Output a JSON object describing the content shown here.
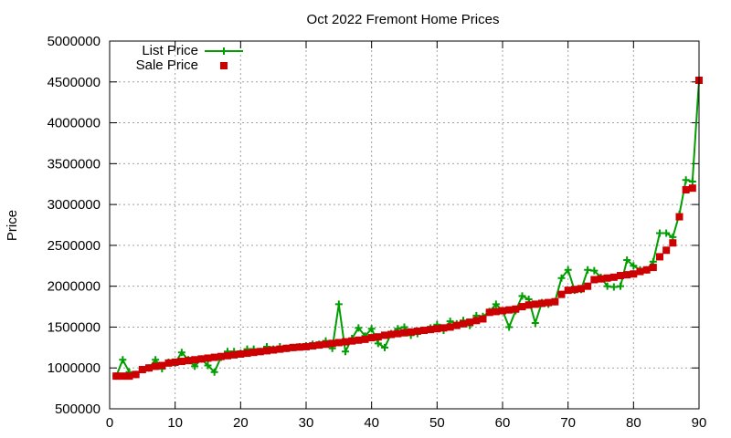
{
  "chart_data": {
    "type": "line",
    "title": "Oct 2022 Fremont Home Prices",
    "xlabel": "",
    "ylabel": "Price",
    "xlim": [
      0,
      90
    ],
    "ylim": [
      500000,
      5000000
    ],
    "xticks": [
      0,
      10,
      20,
      30,
      40,
      50,
      60,
      70,
      80,
      90
    ],
    "yticks": [
      500000,
      1000000,
      1500000,
      2000000,
      2500000,
      3000000,
      3500000,
      4000000,
      4500000,
      5000000
    ],
    "grid": true,
    "legend_position": "top-left",
    "series": [
      {
        "name": "List Price",
        "style": "linespoints",
        "color": "#009e00",
        "x": [
          1,
          2,
          3,
          4,
          5,
          6,
          7,
          8,
          9,
          10,
          11,
          12,
          13,
          14,
          15,
          16,
          17,
          18,
          19,
          20,
          21,
          22,
          23,
          24,
          25,
          26,
          27,
          28,
          29,
          30,
          31,
          32,
          33,
          34,
          35,
          36,
          37,
          38,
          39,
          40,
          41,
          42,
          43,
          44,
          45,
          46,
          47,
          48,
          49,
          50,
          51,
          52,
          53,
          54,
          55,
          56,
          57,
          58,
          59,
          60,
          61,
          62,
          63,
          64,
          65,
          66,
          67,
          68,
          69,
          70,
          71,
          72,
          73,
          74,
          75,
          76,
          77,
          78,
          79,
          80,
          81,
          82,
          83,
          84,
          85,
          86,
          87,
          88,
          89,
          90
        ],
        "values": [
          900000,
          1100000,
          950000,
          920000,
          980000,
          1000000,
          1100000,
          990000,
          1070000,
          1060000,
          1190000,
          1100000,
          1020000,
          1110000,
          1030000,
          950000,
          1130000,
          1200000,
          1200000,
          1180000,
          1230000,
          1230000,
          1200000,
          1260000,
          1230000,
          1260000,
          1240000,
          1250000,
          1260000,
          1270000,
          1290000,
          1290000,
          1330000,
          1240000,
          1780000,
          1200000,
          1360000,
          1490000,
          1390000,
          1480000,
          1300000,
          1250000,
          1420000,
          1480000,
          1500000,
          1400000,
          1420000,
          1460000,
          1490000,
          1530000,
          1460000,
          1570000,
          1540000,
          1580000,
          1520000,
          1640000,
          1630000,
          1690000,
          1780000,
          1700000,
          1500000,
          1700000,
          1880000,
          1840000,
          1550000,
          1800000,
          1780000,
          1810000,
          2100000,
          2200000,
          1950000,
          1960000,
          2200000,
          2190000,
          2110000,
          2000000,
          1990000,
          2000000,
          2320000,
          2250000,
          2200000,
          2200000,
          2300000,
          2650000,
          2650000,
          2600000,
          2880000,
          3300000,
          3280000,
          4520000
        ]
      },
      {
        "name": "Sale Price",
        "style": "points",
        "color": "#cc0000",
        "x": [
          1,
          2,
          3,
          4,
          5,
          6,
          7,
          8,
          9,
          10,
          11,
          12,
          13,
          14,
          15,
          16,
          17,
          18,
          19,
          20,
          21,
          22,
          23,
          24,
          25,
          26,
          27,
          28,
          29,
          30,
          31,
          32,
          33,
          34,
          35,
          36,
          37,
          38,
          39,
          40,
          41,
          42,
          43,
          44,
          45,
          46,
          47,
          48,
          49,
          50,
          51,
          52,
          53,
          54,
          55,
          56,
          57,
          58,
          59,
          60,
          61,
          62,
          63,
          64,
          65,
          66,
          67,
          68,
          69,
          70,
          71,
          72,
          73,
          74,
          75,
          76,
          77,
          78,
          79,
          80,
          81,
          82,
          83,
          84,
          85,
          86,
          87,
          88,
          89,
          90
        ],
        "values": [
          900000,
          900000,
          900000,
          920000,
          980000,
          1000000,
          1020000,
          1030000,
          1060000,
          1070000,
          1080000,
          1090000,
          1100000,
          1110000,
          1120000,
          1130000,
          1140000,
          1150000,
          1160000,
          1170000,
          1180000,
          1190000,
          1200000,
          1210000,
          1220000,
          1230000,
          1240000,
          1250000,
          1255000,
          1260000,
          1270000,
          1280000,
          1290000,
          1300000,
          1310000,
          1320000,
          1330000,
          1340000,
          1350000,
          1370000,
          1380000,
          1400000,
          1410000,
          1420000,
          1430000,
          1440000,
          1450000,
          1460000,
          1470000,
          1480000,
          1490000,
          1500000,
          1520000,
          1540000,
          1560000,
          1580000,
          1600000,
          1680000,
          1690000,
          1700000,
          1710000,
          1720000,
          1750000,
          1770000,
          1780000,
          1790000,
          1800000,
          1810000,
          1900000,
          1950000,
          1960000,
          1970000,
          2000000,
          2080000,
          2090000,
          2100000,
          2110000,
          2130000,
          2140000,
          2150000,
          2180000,
          2200000,
          2230000,
          2360000,
          2440000,
          2530000,
          2850000,
          3180000,
          3200000,
          4520000
        ]
      }
    ]
  }
}
